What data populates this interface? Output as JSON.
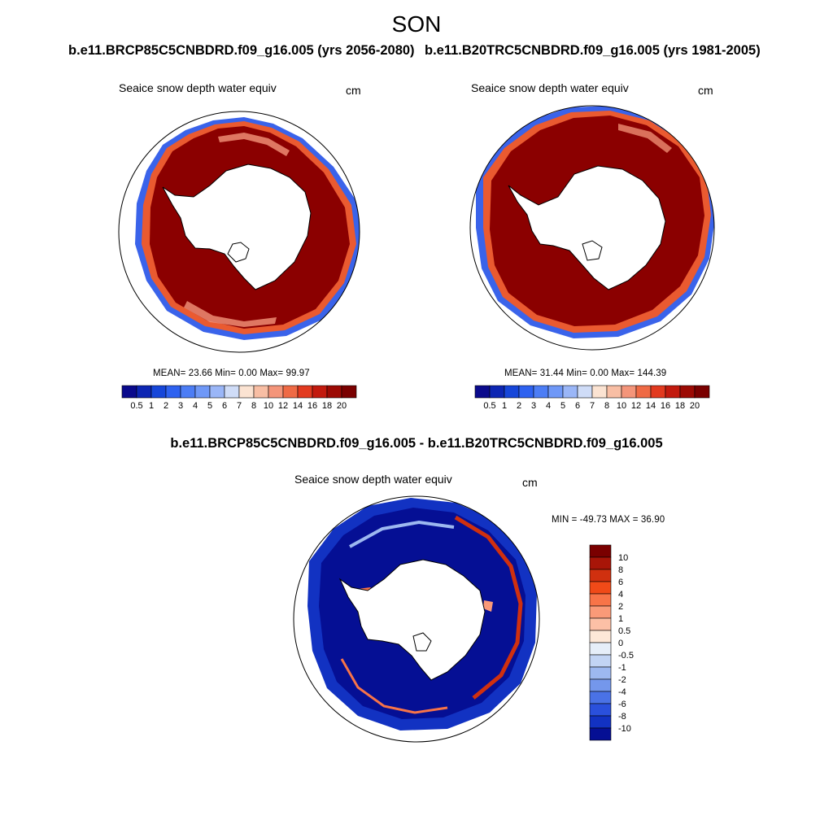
{
  "title": "SON",
  "run_titles": {
    "left": "b.e11.BRCP85C5CNBDRD.f09_g16.005 (yrs 2056-2080)",
    "right": "b.e11.B20TRC5CNBDRD.f09_g16.005 (yrs 1981-2005)"
  },
  "panels": {
    "top_left": {
      "variable": "Seaice snow depth water equiv",
      "units": "cm",
      "stats": "MEAN=  23.66  Min=   0.00  Max=  99.97"
    },
    "top_right": {
      "variable": "Seaice snow depth water equiv",
      "units": "cm",
      "stats": "MEAN=  31.44  Min=   0.00  Max= 144.39"
    },
    "bottom": {
      "title": "b.e11.BRCP85C5CNBDRD.f09_g16.005 - b.e11.B20TRC5CNBDRD.f09_g16.005",
      "variable": "Seaice snow depth water equiv",
      "units": "cm",
      "stats": "MIN = -49.73 MAX =  36.90"
    }
  },
  "colorbar_top": {
    "labels": [
      "0.5",
      "1",
      "2",
      "3",
      "4",
      "5",
      "6",
      "7",
      "8",
      "10",
      "12",
      "14",
      "16",
      "18",
      "20"
    ],
    "colors": [
      "#0a0a8c",
      "#0d26b3",
      "#1646d9",
      "#2e62f0",
      "#4c7df5",
      "#6f98f7",
      "#9ab6f7",
      "#cfdcf7",
      "#fbe3d2",
      "#f8bea4",
      "#f4957a",
      "#ef6a45",
      "#e23a1f",
      "#c21a0e",
      "#9c0a04",
      "#7a0000"
    ]
  },
  "colorbar_diff": {
    "labels": [
      "10",
      "8",
      "6",
      "4",
      "2",
      "1",
      "0.5",
      "0",
      "-0.5",
      "-1",
      "-2",
      "-4",
      "-6",
      "-8",
      "-10"
    ],
    "colors": [
      "#7a0000",
      "#a81508",
      "#d0300f",
      "#f04a18",
      "#f87448",
      "#fa9a78",
      "#fcc0a6",
      "#fde8d8",
      "#e6eef9",
      "#c2d4f4",
      "#9db8f0",
      "#7497ec",
      "#4a72e6",
      "#2a50dc",
      "#1232c2",
      "#050f94"
    ]
  }
}
